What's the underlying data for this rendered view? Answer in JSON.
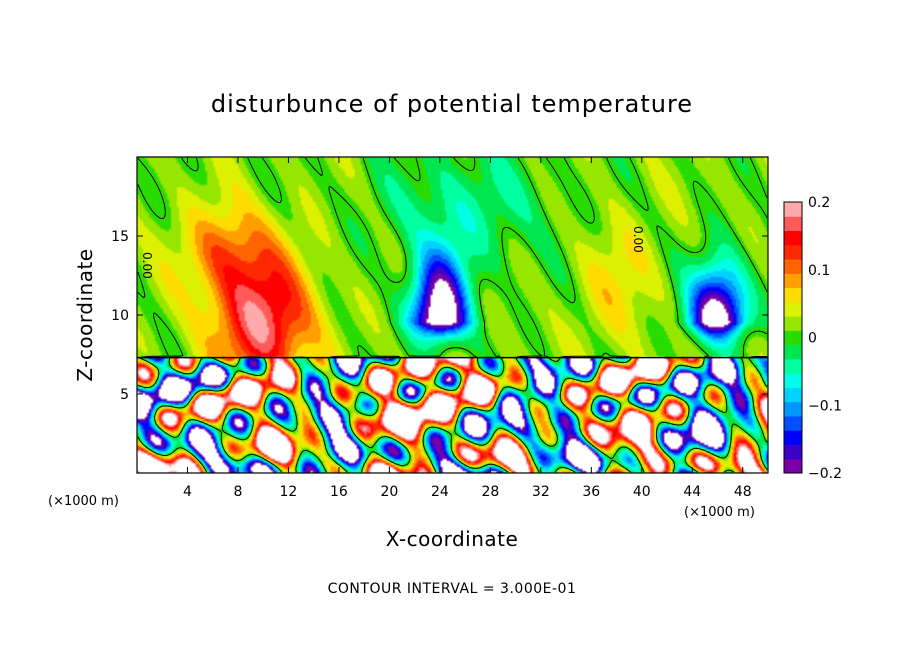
{
  "chart_data": {
    "type": "heatmap",
    "title": "disturbunce of potential temperature",
    "xlabel": "X-coordinate",
    "ylabel": "Z-coordinate",
    "x_unit": "(×1000 m)",
    "y_unit": "(×1000 m)",
    "xlim": [
      0,
      50
    ],
    "ylim": [
      0,
      20
    ],
    "x_ticks": [
      4,
      8,
      12,
      16,
      20,
      24,
      28,
      32,
      36,
      40,
      44,
      48
    ],
    "y_ticks": [
      5,
      10,
      15
    ],
    "colorbar": {
      "min": -0.2,
      "max": 0.2,
      "tick_values": [
        0.2,
        0.1,
        0,
        -0.1,
        -0.2
      ],
      "tick_labels": [
        "0.2",
        "0.1",
        "0",
        "−0.1",
        "−0.2"
      ],
      "colors": [
        "#7a00a8",
        "#3c00c8",
        "#0000ff",
        "#0050ff",
        "#0096ff",
        "#00d2ff",
        "#00ffe6",
        "#00ffa0",
        "#00e650",
        "#28dc00",
        "#96e600",
        "#dcf000",
        "#ffdc00",
        "#ffa000",
        "#ff6400",
        "#ff2800",
        "#ff0000",
        "#ff5a5a",
        "#ffaaaa"
      ]
    },
    "contour_interval_label": "CONTOUR INTERVAL = 3.000E-01",
    "contour_labels": [
      "0.00",
      "0.00"
    ],
    "interface_height": 7.3,
    "features": {
      "cold_cores": [
        {
          "x": 24,
          "z": 9.5,
          "amp": -0.28,
          "sx": 2.2,
          "sz": 4.0
        },
        {
          "x": 46,
          "z": 9.5,
          "amp": -0.27,
          "sx": 2.2,
          "sz": 3.5
        }
      ],
      "warm_regions": [
        {
          "x": 10,
          "z": 9.5,
          "amp": 0.16,
          "sx": 3.8,
          "sz": 4.2
        },
        {
          "x": 7,
          "z": 14,
          "amp": 0.08,
          "sx": 3.5,
          "sz": 3.0
        },
        {
          "x": 38,
          "z": 12,
          "amp": 0.04,
          "sx": 3.0,
          "sz": 4.0
        }
      ]
    }
  }
}
